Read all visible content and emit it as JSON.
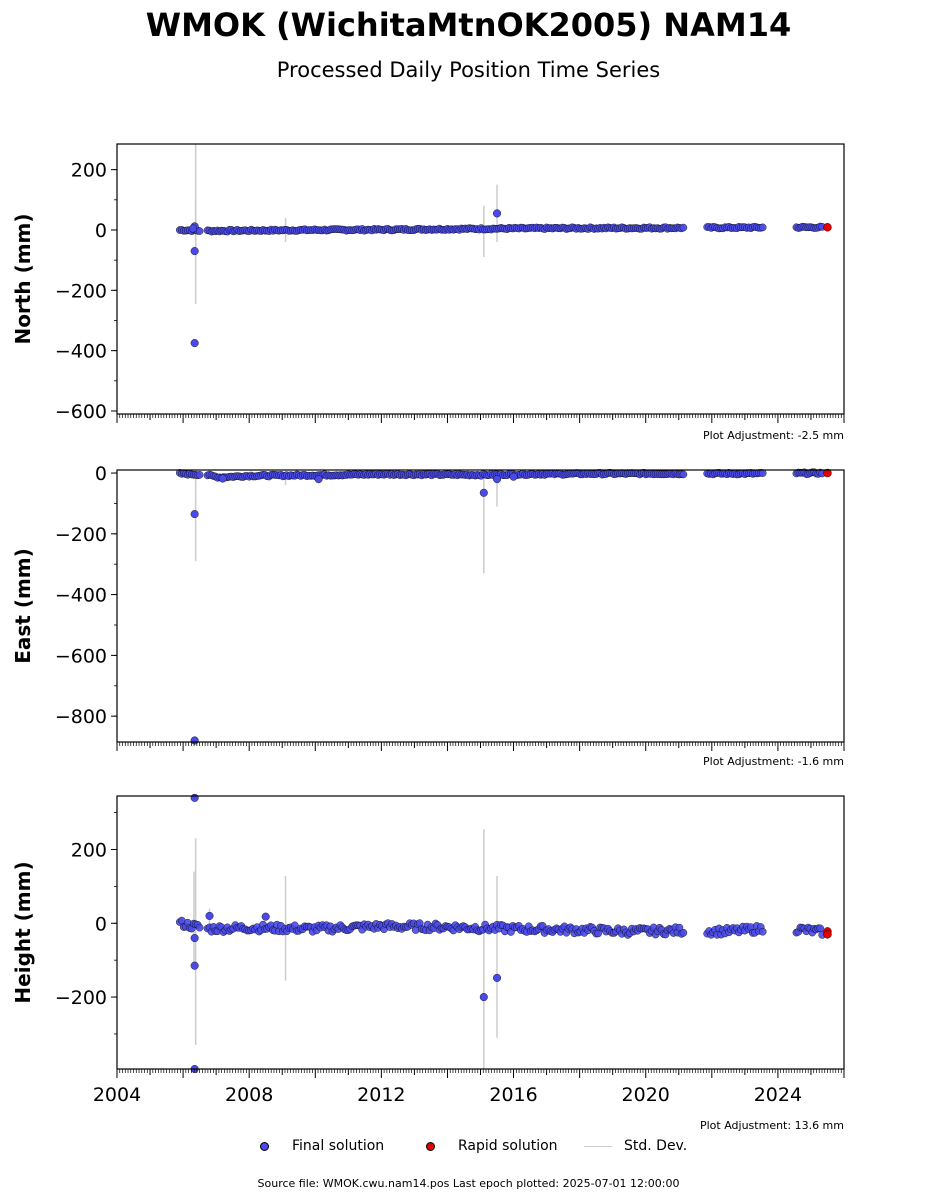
{
  "title": "WMOK (WichitaMtnOK2005) NAM14",
  "subtitle": "Processed Daily Position Time Series",
  "legend": {
    "final": "Final solution",
    "rapid": "Rapid solution",
    "std": "Std. Dev."
  },
  "source_line": "Source file: WMOK.cwu.nam14.pos  Last epoch plotted: 2025-07-01 12:00:00",
  "colors": {
    "final": "#4a4ae8",
    "rapid": "#e00000",
    "std": "#cccccc"
  },
  "chart_data": [
    {
      "type": "scatter",
      "ylabel": "North (mm)",
      "adjustment": "Plot Adjustment: -2.5 mm",
      "xlim": [
        2004,
        2026
      ],
      "ylim": [
        -610,
        285
      ],
      "yticks": [
        200,
        0,
        -200,
        -400,
        -600
      ],
      "ytick_labels": [
        "200",
        "0",
        "−200",
        "−400",
        "−600"
      ],
      "trend": [
        [
          2005.9,
          0
        ],
        [
          2006.7,
          -3
        ],
        [
          2010,
          0
        ],
        [
          2012,
          1
        ],
        [
          2016,
          5
        ],
        [
          2018,
          6
        ],
        [
          2021,
          7
        ],
        [
          2023,
          8
        ],
        [
          2025.5,
          9
        ]
      ],
      "outliers": [
        [
          2006.35,
          -70
        ],
        [
          2006.35,
          -375
        ],
        [
          2006.35,
          12
        ],
        [
          2015.5,
          55
        ],
        [
          2006.3,
          5
        ]
      ],
      "errorbars": [
        [
          2006.38,
          -245,
          285
        ],
        [
          2006.38,
          -90,
          100
        ],
        [
          2009.1,
          -40,
          40
        ],
        [
          2015.1,
          -90,
          80
        ],
        [
          2015.5,
          -40,
          150
        ]
      ],
      "rapid": [
        [
          2025.5,
          9
        ]
      ]
    },
    {
      "type": "scatter",
      "ylabel": "East (mm)",
      "adjustment": "Plot Adjustment: -1.6 mm",
      "xlim": [
        2004,
        2026
      ],
      "ylim": [
        -885,
        10
      ],
      "yticks": [
        0,
        -200,
        -400,
        -600,
        -800
      ],
      "ytick_labels": [
        "0",
        "−200",
        "−400",
        "−600",
        "−800"
      ],
      "trend": [
        [
          2005.9,
          -2
        ],
        [
          2006.7,
          -6
        ],
        [
          2007.1,
          -14
        ],
        [
          2008,
          -9
        ],
        [
          2010,
          -7
        ],
        [
          2012,
          -4
        ],
        [
          2015,
          -6
        ],
        [
          2016,
          -4
        ],
        [
          2019,
          -2
        ],
        [
          2021,
          -2
        ],
        [
          2023,
          -2
        ],
        [
          2025.5,
          0
        ]
      ],
      "outliers": [
        [
          2006.35,
          -135
        ],
        [
          2006.35,
          -880
        ],
        [
          2015.1,
          -65
        ],
        [
          2015.5,
          -20
        ],
        [
          2010.1,
          -20
        ],
        [
          2007.2,
          -18
        ],
        [
          2016,
          -12
        ]
      ],
      "errorbars": [
        [
          2006.38,
          -290,
          10
        ],
        [
          2009.1,
          -40,
          10
        ],
        [
          2015.1,
          -330,
          10
        ],
        [
          2015.5,
          -110,
          10
        ]
      ],
      "rapid": [
        [
          2025.5,
          0
        ]
      ]
    },
    {
      "type": "scatter",
      "ylabel": "Height (mm)",
      "adjustment": "Plot Adjustment: 13.6 mm",
      "xlim": [
        2004,
        2026
      ],
      "xticks": [
        2004,
        2008,
        2012,
        2016,
        2020,
        2024
      ],
      "xtick_labels": [
        "2004",
        "2008",
        "2012",
        "2016",
        "2020",
        "2024"
      ],
      "ylim": [
        -395,
        345
      ],
      "yticks": [
        200,
        0,
        -200
      ],
      "ytick_labels": [
        "200",
        "0",
        "−200"
      ],
      "trend": [
        [
          2005.9,
          0
        ],
        [
          2006.7,
          -15
        ],
        [
          2008,
          -12
        ],
        [
          2010,
          -15
        ],
        [
          2012,
          -8
        ],
        [
          2014,
          -10
        ],
        [
          2016,
          -15
        ],
        [
          2018,
          -18
        ],
        [
          2019.5,
          -22
        ],
        [
          2021,
          -20
        ],
        [
          2022.5,
          -22
        ],
        [
          2023.5,
          -15
        ],
        [
          2024.5,
          -15
        ],
        [
          2025.5,
          -25
        ]
      ],
      "outliers": [
        [
          2006.35,
          340
        ],
        [
          2006.35,
          -115
        ],
        [
          2006.35,
          -395
        ],
        [
          2006.35,
          -40
        ],
        [
          2015.1,
          -200
        ],
        [
          2015.5,
          -148
        ],
        [
          2006.8,
          20
        ],
        [
          2008.5,
          18
        ]
      ],
      "errorbars": [
        [
          2006.38,
          -330,
          230
        ],
        [
          2006.33,
          -120,
          140
        ],
        [
          2006.8,
          -20,
          40
        ],
        [
          2009.1,
          -155,
          128
        ],
        [
          2015.1,
          -395,
          255
        ],
        [
          2015.5,
          -310,
          128
        ]
      ],
      "rapid": [
        [
          2025.5,
          -22
        ],
        [
          2025.5,
          -30
        ]
      ]
    }
  ]
}
